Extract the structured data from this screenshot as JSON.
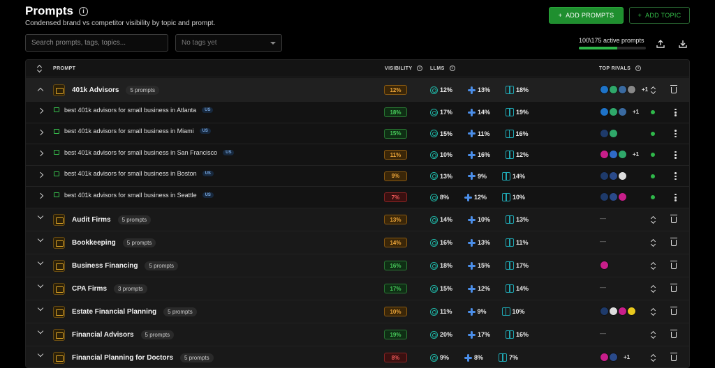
{
  "header": {
    "title": "Prompts",
    "subtitle": "Condensed brand vs competitor visibility by topic and prompt.",
    "add_prompts_label": "ADD PROMPTS",
    "add_topic_label": "ADD TOPIC"
  },
  "filters": {
    "search_placeholder": "Search prompts, tags, topics...",
    "tags_placeholder": "No tags yet"
  },
  "active": {
    "label": "100\\175 active prompts",
    "fraction": 0.571
  },
  "columns": {
    "prompt": "PROMPT",
    "visibility": "VISIBILITY",
    "llms": "LLMS",
    "top_rivals": "TOP RIVALS"
  },
  "colors": {
    "accent_green": "#1f8f2f",
    "vis_orange": "#f0a83a",
    "vis_green": "#48cf5c",
    "vis_red": "#ef5a5a"
  },
  "rows": [
    {
      "kind": "topic",
      "expanded": true,
      "name": "401k Advisors",
      "count": "5 prompts",
      "visibility": "12%",
      "vis_color": "orange",
      "gpt": "12%",
      "gemini": "13%",
      "pplx": "18%",
      "rivals": [
        "#1e73c8",
        "#2fa86a",
        "#3a6aa0",
        "#888"
      ],
      "rivals_more": "+1"
    },
    {
      "kind": "child",
      "name": "best 401k advisors for small business in Atlanta",
      "region": "US",
      "visibility": "18%",
      "vis_color": "green",
      "gpt": "17%",
      "gemini": "14%",
      "pplx": "19%",
      "rivals": [
        "#1e73c8",
        "#2fa86a",
        "#3a6aa0"
      ],
      "rivals_more": "+1"
    },
    {
      "kind": "child",
      "name": "best 401k advisors for small business in Miami",
      "region": "US",
      "visibility": "15%",
      "vis_color": "green",
      "gpt": "15%",
      "gemini": "11%",
      "pplx": "16%",
      "rivals": [
        "#1e3a6a",
        "#2fa86a"
      ],
      "rivals_more": ""
    },
    {
      "kind": "child",
      "name": "best 401k advisors for small business in San Francisco",
      "region": "US",
      "visibility": "11%",
      "vis_color": "orange",
      "gpt": "10%",
      "gemini": "16%",
      "pplx": "12%",
      "rivals": [
        "#c81e8a",
        "#2f6ac8",
        "#2fa86a"
      ],
      "rivals_more": "+1"
    },
    {
      "kind": "child",
      "name": "best 401k advisors for small business in Boston",
      "region": "US",
      "visibility": "9%",
      "vis_color": "orange",
      "gpt": "13%",
      "gemini": "9%",
      "pplx": "14%",
      "rivals": [
        "#1e3a6a",
        "#2a4a8a",
        "#ddd"
      ],
      "rivals_more": ""
    },
    {
      "kind": "child",
      "name": "best 401k advisors for small business in Seattle",
      "region": "US",
      "visibility": "7%",
      "vis_color": "red",
      "gpt": "8%",
      "gemini": "12%",
      "pplx": "10%",
      "rivals": [
        "#1e3a6a",
        "#2a4a8a",
        "#c81e8a"
      ],
      "rivals_more": ""
    },
    {
      "kind": "topic",
      "expanded": false,
      "name": "Audit Firms",
      "count": "5 prompts",
      "visibility": "13%",
      "vis_color": "orange",
      "gpt": "14%",
      "gemini": "10%",
      "pplx": "13%",
      "rivals": [],
      "rivals_more": "",
      "dash": "—"
    },
    {
      "kind": "topic",
      "expanded": false,
      "name": "Bookkeeping",
      "count": "5 prompts",
      "visibility": "14%",
      "vis_color": "orange",
      "gpt": "16%",
      "gemini": "13%",
      "pplx": "11%",
      "rivals": [],
      "rivals_more": "",
      "dash": "—"
    },
    {
      "kind": "topic",
      "expanded": false,
      "name": "Business Financing",
      "count": "5 prompts",
      "visibility": "16%",
      "vis_color": "green",
      "gpt": "18%",
      "gemini": "15%",
      "pplx": "17%",
      "rivals": [
        "#c81e8a"
      ],
      "rivals_more": ""
    },
    {
      "kind": "topic",
      "expanded": false,
      "name": "CPA Firms",
      "count": "3 prompts",
      "visibility": "17%",
      "vis_color": "green",
      "gpt": "15%",
      "gemini": "12%",
      "pplx": "14%",
      "rivals": [],
      "rivals_more": "",
      "dash": "—"
    },
    {
      "kind": "topic",
      "expanded": false,
      "name": "Estate Financial Planning",
      "count": "5 prompts",
      "visibility": "10%",
      "vis_color": "orange",
      "gpt": "11%",
      "gemini": "9%",
      "pplx": "10%",
      "rivals": [
        "#1e3a6a",
        "#ddd",
        "#c81e8a",
        "#e8c81e"
      ],
      "rivals_more": ""
    },
    {
      "kind": "topic",
      "expanded": false,
      "name": "Financial Advisors",
      "count": "5 prompts",
      "visibility": "19%",
      "vis_color": "green",
      "gpt": "20%",
      "gemini": "17%",
      "pplx": "16%",
      "rivals": [],
      "rivals_more": "",
      "dash": "—"
    },
    {
      "kind": "topic",
      "expanded": false,
      "name": "Financial Planning for Doctors",
      "count": "5 prompts",
      "visibility": "8%",
      "vis_color": "red",
      "gpt": "9%",
      "gemini": "8%",
      "pplx": "7%",
      "rivals": [
        "#c81e8a",
        "#2a4a8a"
      ],
      "rivals_more": "+1"
    }
  ]
}
